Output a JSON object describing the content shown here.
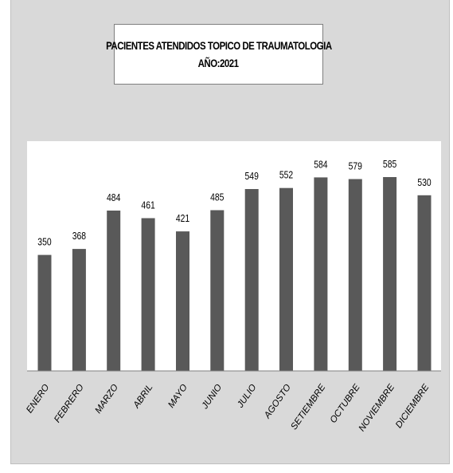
{
  "chart_data": {
    "type": "bar",
    "title": "PACIENTES ATENDIDOS TOPICO DE TRAUMATOLOGIA",
    "subtitle": "AÑO:2021",
    "categories": [
      "ENERO",
      "FEBRERO",
      "MARZO",
      "ABRIL",
      "MAYO",
      "JUNIO",
      "JULIO",
      "AGOSTO",
      "SETIEMBRE",
      "OCTUBRE",
      "NOVIEMBRE",
      "DICIEMBRE"
    ],
    "values": [
      350,
      368,
      484,
      461,
      421,
      485,
      549,
      552,
      584,
      579,
      585,
      530
    ],
    "ylim": [
      0,
      700
    ],
    "grid": false,
    "data_labels": true,
    "bar_color": "#595959",
    "plot_background": "#ffffff",
    "chart_background": "#d9d9d9"
  }
}
